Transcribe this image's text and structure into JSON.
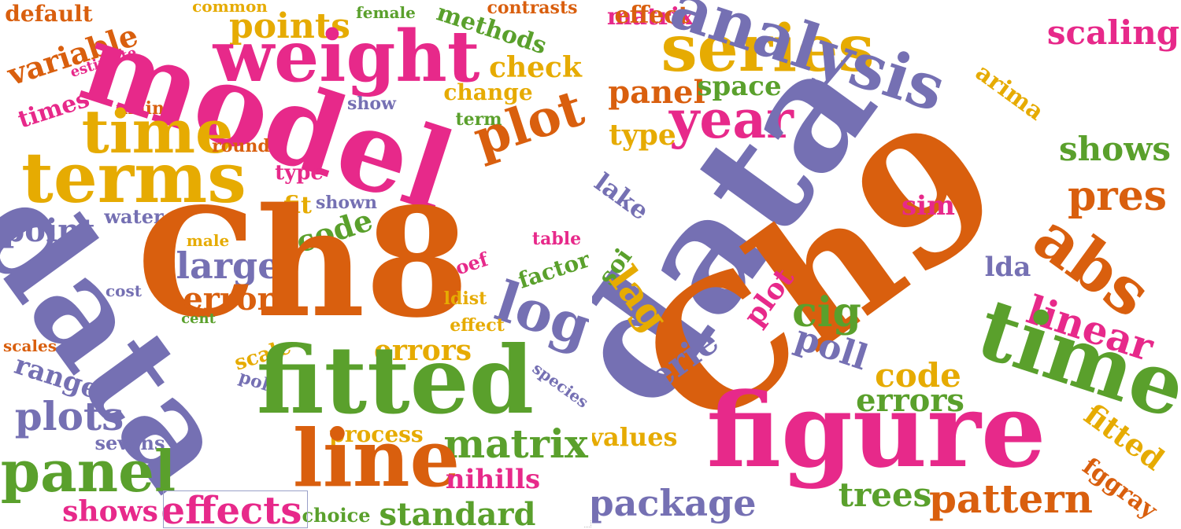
{
  "palette": {
    "orange": "#d95f0e",
    "green": "#5aa02c",
    "purple": "#7570b3",
    "pink": "#e7298a",
    "gold": "#e6ab02"
  },
  "clouds": [
    {
      "id": "left",
      "words": [
        {
          "text": "default",
          "size": 28,
          "color": "orange",
          "rot": 0
        },
        {
          "text": "common",
          "size": 20,
          "color": "gold",
          "rot": 0
        },
        {
          "text": "female",
          "size": 20,
          "color": "green",
          "rot": 0
        },
        {
          "text": "methods",
          "size": 30,
          "color": "green",
          "rot": 18
        },
        {
          "text": "contrasts",
          "size": 22,
          "color": "orange",
          "rot": 0
        },
        {
          "text": "variable",
          "size": 38,
          "color": "orange",
          "rot": -18
        },
        {
          "text": "estimate",
          "size": 18,
          "color": "pink",
          "rot": -18
        },
        {
          "text": "points",
          "size": 44,
          "color": "gold",
          "rot": 0
        },
        {
          "text": "weight",
          "size": 90,
          "color": "pink",
          "rot": 0
        },
        {
          "text": "check",
          "size": 36,
          "color": "gold",
          "rot": 0
        },
        {
          "text": "times",
          "size": 30,
          "color": "pink",
          "rot": -18
        },
        {
          "text": "main",
          "size": 22,
          "color": "orange",
          "rot": 0
        },
        {
          "text": "show",
          "size": 22,
          "color": "purple",
          "rot": 0
        },
        {
          "text": "change",
          "size": 28,
          "color": "gold",
          "rot": 0
        },
        {
          "text": "model",
          "size": 140,
          "color": "pink",
          "rot": 18
        },
        {
          "text": "time",
          "size": 76,
          "color": "gold",
          "rot": 0
        },
        {
          "text": "term",
          "size": 22,
          "color": "green",
          "rot": 0
        },
        {
          "text": "plot",
          "size": 64,
          "color": "orange",
          "rot": -18
        },
        {
          "text": "round",
          "size": 22,
          "color": "orange",
          "rot": 0
        },
        {
          "text": "terms",
          "size": 88,
          "color": "gold",
          "rot": 0
        },
        {
          "text": "type",
          "size": 26,
          "color": "pink",
          "rot": 0
        },
        {
          "text": "fit",
          "size": 30,
          "color": "gold",
          "rot": 0
        },
        {
          "text": "water",
          "size": 24,
          "color": "purple",
          "rot": 0
        },
        {
          "text": "shown",
          "size": 22,
          "color": "purple",
          "rot": 0
        },
        {
          "text": "point",
          "size": 40,
          "color": "purple",
          "rot": 0
        },
        {
          "text": "code",
          "size": 38,
          "color": "green",
          "rot": -18
        },
        {
          "text": "table",
          "size": 22,
          "color": "pink",
          "rot": 0
        },
        {
          "text": "male",
          "size": 20,
          "color": "gold",
          "rot": 0
        },
        {
          "text": "large",
          "size": 46,
          "color": "purple",
          "rot": 0
        },
        {
          "text": "coef",
          "size": 24,
          "color": "pink",
          "rot": -18
        },
        {
          "text": "factor",
          "size": 28,
          "color": "green",
          "rot": -18
        },
        {
          "text": "log",
          "size": 70,
          "color": "purple",
          "rot": 18
        },
        {
          "text": "Ch8",
          "size": 190,
          "color": "orange",
          "rot": 0
        },
        {
          "text": "data",
          "size": 170,
          "color": "purple",
          "rot": 54
        },
        {
          "text": "error",
          "size": 40,
          "color": "orange",
          "rot": 0
        },
        {
          "text": "cost",
          "size": 20,
          "color": "purple",
          "rot": 0
        },
        {
          "text": "cent",
          "size": 18,
          "color": "green",
          "rot": 0
        },
        {
          "text": "ldist",
          "size": 22,
          "color": "gold",
          "rot": 0
        },
        {
          "text": "effect",
          "size": 22,
          "color": "gold",
          "rot": 0
        },
        {
          "text": "scales",
          "size": 20,
          "color": "orange",
          "rot": 0
        },
        {
          "text": "scale",
          "size": 26,
          "color": "gold",
          "rot": -18
        },
        {
          "text": "errors",
          "size": 36,
          "color": "gold",
          "rot": 0
        },
        {
          "text": "poll",
          "size": 22,
          "color": "purple",
          "rot": 18
        },
        {
          "text": "range",
          "size": 34,
          "color": "purple",
          "rot": 18
        },
        {
          "text": "fitted",
          "size": 118,
          "color": "green",
          "rot": 0
        },
        {
          "text": "species",
          "size": 20,
          "color": "purple",
          "rot": 36
        },
        {
          "text": "plots",
          "size": 50,
          "color": "purple",
          "rot": 0
        },
        {
          "text": "sevens",
          "size": 24,
          "color": "purple",
          "rot": 0
        },
        {
          "text": "process",
          "size": 28,
          "color": "gold",
          "rot": 0
        },
        {
          "text": "matrix",
          "size": 50,
          "color": "green",
          "rot": 0
        },
        {
          "text": "panel",
          "size": 72,
          "color": "green",
          "rot": 0
        },
        {
          "text": "line",
          "size": 100,
          "color": "orange",
          "rot": 0
        },
        {
          "text": "nihills",
          "size": 34,
          "color": "pink",
          "rot": 0
        },
        {
          "text": "shows",
          "size": 36,
          "color": "pink",
          "rot": 0
        },
        {
          "text": "effects",
          "size": 48,
          "color": "pink",
          "rot": 0
        },
        {
          "text": "choice",
          "size": 24,
          "color": "green",
          "rot": 0
        },
        {
          "text": "standard",
          "size": 40,
          "color": "green",
          "rot": 0
        }
      ]
    },
    {
      "id": "right",
      "words": [
        {
          "text": "matrix",
          "size": 30,
          "color": "pink",
          "rot": 0
        },
        {
          "text": "effect",
          "size": 30,
          "color": "orange",
          "rot": 0
        },
        {
          "text": "series",
          "size": 82,
          "color": "gold",
          "rot": 0
        },
        {
          "text": "analysis",
          "size": 80,
          "color": "purple",
          "rot": 18
        },
        {
          "text": "scaling",
          "size": 42,
          "color": "pink",
          "rot": 0
        },
        {
          "text": "panel",
          "size": 40,
          "color": "orange",
          "rot": 0
        },
        {
          "text": "year",
          "size": 66,
          "color": "pink",
          "rot": 0
        },
        {
          "text": "space",
          "size": 34,
          "color": "green",
          "rot": 0
        },
        {
          "text": "arima",
          "size": 30,
          "color": "gold",
          "rot": 36
        },
        {
          "text": "type",
          "size": 36,
          "color": "gold",
          "rot": 0
        },
        {
          "text": "shows",
          "size": 42,
          "color": "green",
          "rot": 0
        },
        {
          "text": "lake",
          "size": 32,
          "color": "purple",
          "rot": 36
        },
        {
          "text": "data",
          "size": 200,
          "color": "purple",
          "rot": -54
        },
        {
          "text": "Ch9",
          "size": 220,
          "color": "orange",
          "rot": -36
        },
        {
          "text": "pres",
          "size": 52,
          "color": "orange",
          "rot": 0
        },
        {
          "text": "sim",
          "size": 34,
          "color": "pink",
          "rot": 0
        },
        {
          "text": "abs",
          "size": 82,
          "color": "orange",
          "rot": 36
        },
        {
          "text": "soi",
          "size": 30,
          "color": "green",
          "rot": -54
        },
        {
          "text": "lda",
          "size": 34,
          "color": "purple",
          "rot": 0
        },
        {
          "text": "lag",
          "size": 50,
          "color": "gold",
          "rot": 54
        },
        {
          "text": "plot",
          "size": 36,
          "color": "pink",
          "rot": -54
        },
        {
          "text": "cig",
          "size": 52,
          "color": "green",
          "rot": 0
        },
        {
          "text": "linear",
          "size": 50,
          "color": "pink",
          "rot": 18
        },
        {
          "text": "time",
          "size": 106,
          "color": "green",
          "rot": 18
        },
        {
          "text": "erie",
          "size": 44,
          "color": "purple",
          "rot": -36
        },
        {
          "text": "poll",
          "size": 44,
          "color": "purple",
          "rot": 18
        },
        {
          "text": "code",
          "size": 42,
          "color": "gold",
          "rot": 0
        },
        {
          "text": "errors",
          "size": 40,
          "color": "green",
          "rot": 0
        },
        {
          "text": "values",
          "size": 32,
          "color": "gold",
          "rot": 0
        },
        {
          "text": "figure",
          "size": 130,
          "color": "pink",
          "rot": 0
        },
        {
          "text": "fitted",
          "size": 38,
          "color": "gold",
          "rot": 36
        },
        {
          "text": "fggray",
          "size": 30,
          "color": "orange",
          "rot": 36
        },
        {
          "text": "package",
          "size": 46,
          "color": "purple",
          "rot": 0
        },
        {
          "text": "trees",
          "size": 42,
          "color": "green",
          "rot": 0
        },
        {
          "text": "pattern",
          "size": 50,
          "color": "orange",
          "rot": 0
        }
      ]
    }
  ]
}
